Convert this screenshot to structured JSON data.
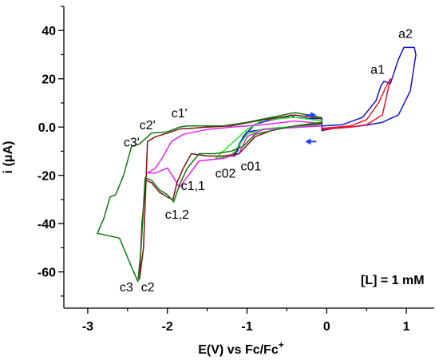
{
  "chart_data": {
    "type": "line",
    "xlabel": "E(V) vs Fc/Fc",
    "xlabel_superscript": "+",
    "ylabel": "i (μA)",
    "xlim": [
      -3.3,
      1.35
    ],
    "ylim": [
      -75,
      50
    ],
    "xticks": [
      -3,
      -2,
      -1,
      0,
      1
    ],
    "xtick_labels": [
      "-3",
      "-2",
      "-1",
      "0",
      "1"
    ],
    "yticks": [
      -60,
      -40,
      -20,
      0,
      20,
      40
    ],
    "ytick_labels": [
      "-60",
      "-40",
      "-20",
      "0.0",
      "20",
      "40"
    ],
    "grid": false,
    "legend": false,
    "concentration_label": "[L] = 1 mM",
    "annotations": [
      {
        "text": "a2",
        "x": 0.9,
        "y": 37
      },
      {
        "text": "a1",
        "x": 0.55,
        "y": 22
      },
      {
        "text": "c1'",
        "x": -1.95,
        "y": 4
      },
      {
        "text": "c2'",
        "x": -2.35,
        "y": -1
      },
      {
        "text": "c3'",
        "x": -2.55,
        "y": -8
      },
      {
        "text": "c02",
        "x": -1.4,
        "y": -21
      },
      {
        "text": "c01",
        "x": -1.08,
        "y": -18
      },
      {
        "text": "c1,1",
        "x": -1.83,
        "y": -26
      },
      {
        "text": "c1,2",
        "x": -2.03,
        "y": -38
      },
      {
        "text": "c3",
        "x": -2.6,
        "y": -68
      },
      {
        "text": "c2",
        "x": -2.33,
        "y": -68
      }
    ],
    "arrows": [
      {
        "direction": "right",
        "x": -0.2,
        "y": 5,
        "color": "#1f3fff"
      },
      {
        "direction": "left",
        "x": -0.2,
        "y": -6,
        "color": "#1f3fff"
      }
    ],
    "series": [
      {
        "color": "#1414d8",
        "x": [
          -0.06,
          0.2,
          0.45,
          0.62,
          0.68,
          0.72,
          0.8,
          0.9,
          0.97,
          1.1,
          1.12,
          1.05,
          0.9,
          0.7,
          0.5,
          0.3,
          0.1,
          -0.06,
          -0.06,
          -0.2,
          -0.4,
          -0.45,
          -0.5,
          -0.7,
          -0.9,
          -1.05,
          -1.12,
          -1.2,
          -1.15,
          -1.1,
          -1.0,
          -0.7,
          -0.5,
          -0.3,
          -0.06
        ],
        "y": [
          0.5,
          1,
          4,
          11,
          17,
          19,
          18,
          28,
          33,
          33,
          30,
          15,
          5,
          2,
          0.8,
          0,
          -0.5,
          -1.5,
          3.5,
          3.5,
          4,
          5,
          4,
          3,
          1.2,
          -4,
          -10,
          -12,
          -12,
          -7,
          -2,
          -0.5,
          0,
          0.3,
          0.5
        ]
      },
      {
        "color": "#e8142c",
        "x": [
          -0.06,
          0.3,
          0.5,
          0.65,
          0.75,
          0.8,
          0.7,
          0.5,
          0.3,
          -0.06
        ],
        "y": [
          -0.5,
          0.5,
          3,
          10,
          17,
          20,
          5,
          1,
          0,
          -1
        ]
      },
      {
        "color": "#22ee22",
        "x": [
          -0.06,
          -0.4,
          -0.8,
          -1.0,
          -1.2,
          -1.4,
          -1.2,
          -1.0,
          -0.8,
          -0.06
        ],
        "y": [
          2.5,
          4,
          3,
          -1,
          -7,
          -13,
          -12,
          -3,
          -0.8,
          1.2
        ]
      },
      {
        "color": "#ee22ee",
        "x": [
          -0.06,
          -0.4,
          -0.8,
          -1.2,
          -1.5,
          -1.8,
          -1.95,
          -2.05,
          -2.15,
          -2.25,
          -2.15,
          -2.0,
          -1.92,
          -1.85,
          -1.6,
          -1.3,
          -1.1,
          -1.0,
          -0.8,
          -0.06
        ],
        "y": [
          1.5,
          2.5,
          1,
          0,
          -1,
          -3,
          -6,
          -12,
          -17,
          -19,
          -19,
          -17,
          -21,
          -25,
          -14,
          -13,
          -11,
          -4,
          -1,
          0.5
        ]
      },
      {
        "color": "#7a1414",
        "x": [
          -0.06,
          -0.4,
          -0.8,
          -1.2,
          -1.5,
          -1.7,
          -1.85,
          -2.0,
          -2.15,
          -2.25,
          -2.3,
          -2.35,
          -2.32,
          -2.27,
          -2.2,
          -2.1,
          -2.0,
          -1.93,
          -1.88,
          -1.8,
          -1.7,
          -1.5,
          -1.3,
          -1.1,
          -0.9,
          -0.7,
          -0.4,
          -0.06
        ],
        "y": [
          3.5,
          5,
          3,
          0.5,
          0,
          -0.5,
          -0.8,
          -2.5,
          -4,
          -6,
          -50,
          -63,
          -40,
          -22,
          -23,
          -27,
          -29,
          -30,
          -23,
          -17,
          -11,
          -12,
          -12,
          -11,
          -4,
          -1.5,
          0.5,
          1.5
        ]
      },
      {
        "color": "#117711",
        "x": [
          -0.06,
          -0.4,
          -0.7,
          -1.0,
          -1.3,
          -1.55,
          -1.75,
          -1.85,
          -2.0,
          -2.2,
          -2.35,
          -2.45,
          -2.55,
          -2.65,
          -2.72,
          -2.8,
          -2.88,
          -2.6,
          -2.45,
          -2.37,
          -2.33,
          -2.28,
          -2.2,
          -2.1,
          -2.0,
          -1.92,
          -1.85,
          -1.75,
          -1.6,
          -1.4,
          -1.2,
          -1.05,
          -0.9,
          -0.7,
          -0.4,
          -0.06
        ],
        "y": [
          4,
          6,
          4,
          2,
          0.5,
          0.5,
          0.5,
          0,
          -2,
          -2.5,
          -7,
          -8,
          -20,
          -28,
          -29,
          -38,
          -44,
          -46,
          -58,
          -64,
          -50,
          -21,
          -22,
          -26,
          -28,
          -31,
          -24,
          -17,
          -11,
          -11,
          -10,
          -8,
          -3,
          -1.5,
          0.5,
          2
        ]
      }
    ]
  }
}
